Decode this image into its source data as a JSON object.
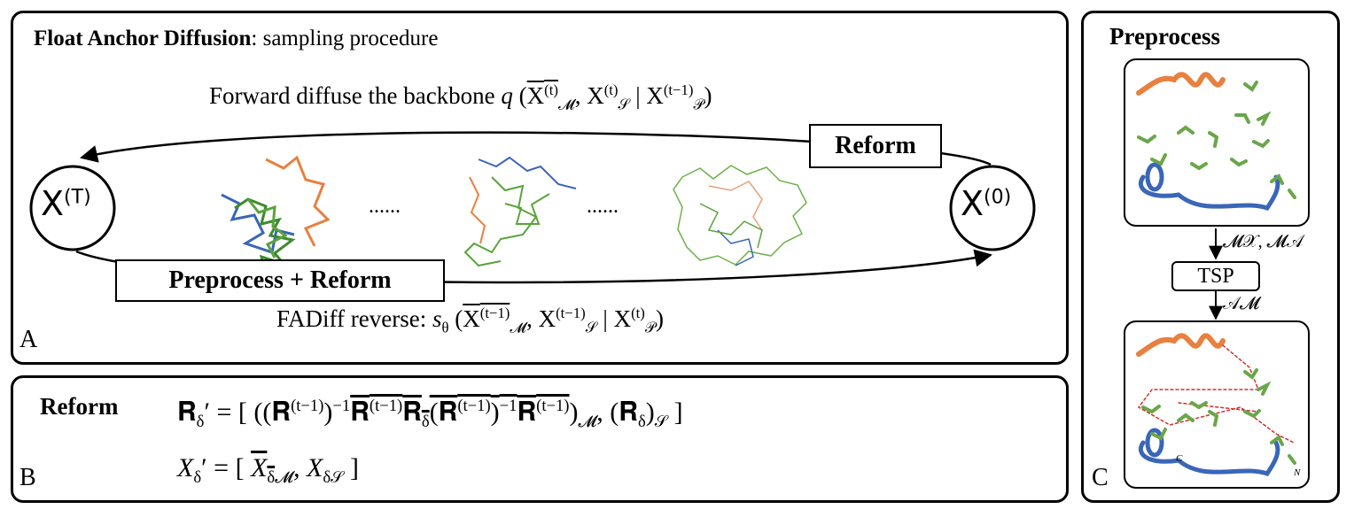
{
  "panel_a": {
    "title_bold": "Float Anchor Diffusion",
    "title_rest": ": sampling procedure",
    "forward_text": "Forward diffuse the backbone",
    "forward_formula": [
      {
        "t": "q",
        "k": "it"
      },
      {
        "t": " (",
        "k": "base"
      },
      {
        "over": [
          {
            "t": "X",
            "k": "base"
          },
          {
            "t": "(t)",
            "k": "sup"
          }
        ]
      },
      {
        "t": "𝓜",
        "k": "sub"
      },
      {
        "t": ", X",
        "k": "base"
      },
      {
        "t": "(t)",
        "k": "sup"
      },
      {
        "t": "𝒮",
        "k": "sub"
      },
      {
        "t": " | X",
        "k": "base"
      },
      {
        "t": "(t−1)",
        "k": "sup"
      },
      {
        "t": "𝒫",
        "k": "sub"
      },
      {
        "t": ")",
        "k": "base"
      }
    ],
    "start_label": "X",
    "start_sup": "(T)",
    "end_label": "X",
    "end_sup": "(0)",
    "reform_box": "Reform",
    "preprocess_box": "Preprocess  + Reform",
    "ellipses": [
      "......",
      "......"
    ],
    "reverse_text": "FADiff reverse:",
    "reverse_formula": [
      {
        "t": "s",
        "k": "it"
      },
      {
        "t": "θ",
        "k": "sub"
      },
      {
        "t": " (",
        "k": "base"
      },
      {
        "over": [
          {
            "t": "X",
            "k": "base"
          },
          {
            "t": "(t−1)",
            "k": "sup"
          }
        ]
      },
      {
        "t": "𝓜",
        "k": "sub"
      },
      {
        "t": ", X",
        "k": "base"
      },
      {
        "t": "(t−1)",
        "k": "sup"
      },
      {
        "t": "𝒮",
        "k": "sub"
      },
      {
        "t": " | X",
        "k": "base"
      },
      {
        "t": "(t)",
        "k": "sup"
      },
      {
        "t": "𝒫",
        "k": "sub"
      },
      {
        "t": ")",
        "k": "base"
      }
    ],
    "letter": "A"
  },
  "panel_b": {
    "title": "Reform",
    "formula_1": [
      {
        "t": "𝐑",
        "k": "base"
      },
      {
        "t": "δ",
        "k": "sub"
      },
      {
        "t": "′ = [ ((𝐑",
        "k": "base"
      },
      {
        "t": "(t−1)",
        "k": "sup"
      },
      {
        "t": ")",
        "k": "base"
      },
      {
        "t": "−1",
        "k": "sup"
      },
      {
        "over": [
          {
            "t": "𝐑",
            "k": "base"
          },
          {
            "t": "(t−1)",
            "k": "sup"
          },
          {
            "t": "𝐑",
            "k": "base"
          },
          {
            "t": "δ",
            "k": "sub"
          },
          {
            "t": "(𝐑",
            "k": "base"
          },
          {
            "t": "(t−1)",
            "k": "sup"
          },
          {
            "t": ")",
            "k": "base"
          },
          {
            "t": "−1",
            "k": "sup"
          },
          {
            "t": "𝐑",
            "k": "base"
          },
          {
            "t": "(t−1)",
            "k": "sup"
          }
        ]
      },
      {
        "t": ")",
        "k": "base"
      },
      {
        "t": "𝓜",
        "k": "sub"
      },
      {
        "t": ", (𝐑",
        "k": "base"
      },
      {
        "t": "δ",
        "k": "sub"
      },
      {
        "t": ")",
        "k": "base"
      },
      {
        "t": "𝒮",
        "k": "sub"
      },
      {
        "t": " ]",
        "k": "base"
      }
    ],
    "formula_2": [
      {
        "t": "X",
        "k": "it"
      },
      {
        "t": "δ",
        "k": "sub"
      },
      {
        "t": "′ = [ ",
        "k": "base"
      },
      {
        "over": [
          {
            "t": "X",
            "k": "it"
          },
          {
            "t": "δ",
            "k": "sub"
          }
        ]
      },
      {
        "t": "𝓜",
        "k": "sub"
      },
      {
        "t": ", X",
        "k": "it"
      },
      {
        "t": "δ𝒮",
        "k": "sub"
      },
      {
        "t": " ]",
        "k": "base"
      }
    ],
    "letter": "B"
  },
  "panel_c": {
    "title": "Preprocess",
    "arrow_label_1": "𝓜𝒳, 𝓜𝒜",
    "tsp_box": "TSP",
    "arrow_label_2": "𝒜𝓜",
    "terminal_c": "C",
    "terminal_n": "N",
    "letter": "C"
  }
}
